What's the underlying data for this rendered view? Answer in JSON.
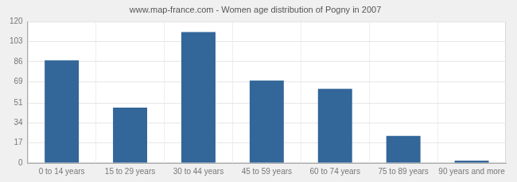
{
  "chart_data": {
    "type": "bar",
    "title": "www.map-france.com - Women age distribution of Pogny in 2007",
    "categories": [
      "0 to 14 years",
      "15 to 29 years",
      "30 to 44 years",
      "45 to 59 years",
      "60 to 74 years",
      "75 to 89 years",
      "90 years and more"
    ],
    "values": [
      87,
      47,
      111,
      70,
      63,
      23,
      2
    ],
    "color": "#336699",
    "ylim": [
      0,
      120
    ],
    "yticks": [
      0,
      17,
      34,
      51,
      69,
      86,
      103,
      120
    ],
    "grid": true
  }
}
